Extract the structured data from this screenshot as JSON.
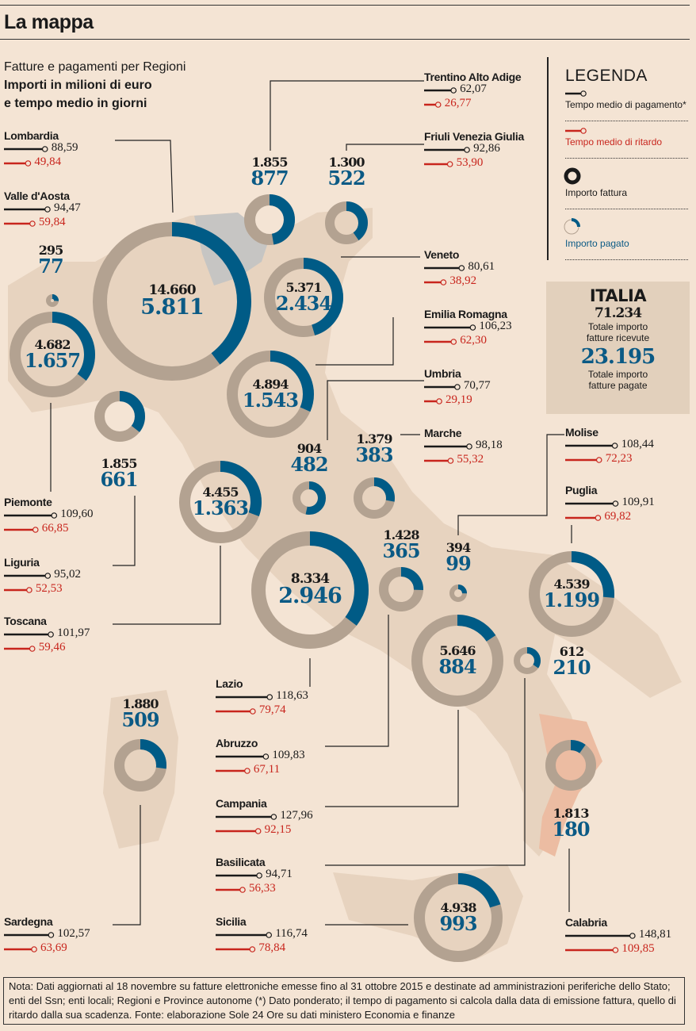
{
  "header": {
    "title": "La mappa",
    "subtitle": "Fatture e pagamenti per Regioni",
    "subtitle_bold_1": "Importi in milioni di euro",
    "subtitle_bold_2": "e tempo medio in giorni"
  },
  "legend": {
    "title": "LEGENDA",
    "payment_time": "Tempo medio di pagamento*",
    "delay_time": "Tempo medio di ritardo",
    "invoice_amount": "Importo fattura",
    "paid_amount": "Importo pagato"
  },
  "italia": {
    "title": "ITALIA",
    "total_invoices": "71.234",
    "total_invoices_label_1": "Totale importo",
    "total_invoices_label_2": "fatture ricevute",
    "total_paid": "23.195",
    "total_paid_label_1": "Totale importo",
    "total_paid_label_2": "fatture pagate"
  },
  "note": "Nota: Dati aggiornati al 18 novembre su fatture elettroniche emesse fino al 31 ottobre 2015 e destinate ad amministrazioni periferiche dello Stato; enti del Ssn; enti locali; Regioni e Province autonome (*) Dato ponderato; il tempo di pagamento si calcola dalla data di emissione fattura, quello di ritardo dalla sua scadenza. Fonte: elaborazione Sole 24 Ore su dati ministero Economia e finanze",
  "colors": {
    "invoice": "#b3a291",
    "paid": "#005b86",
    "payment_line": "#1a1a1a",
    "delay_line": "#c8251d",
    "map": "#e7d3bf",
    "map_north": "#c4c4c4",
    "map_calabria": "#edbda3"
  },
  "chart_data": {
    "type": "donut-map",
    "title": "Fatture e pagamenti per Regioni",
    "units": {
      "amount": "milioni di euro",
      "time": "giorni"
    },
    "regions": [
      {
        "name": "Lombardia",
        "invoice": "14.660",
        "paid": "5.811",
        "invoice_value": 14660,
        "paid_value": 5811,
        "payment_days": "88,59",
        "delay_days": "49,84"
      },
      {
        "name": "Valle d'Aosta",
        "invoice": "295",
        "paid": "77",
        "invoice_value": 295,
        "paid_value": 77,
        "payment_days": "94,47",
        "delay_days": "59,84"
      },
      {
        "name": "Piemonte",
        "invoice": "4.682",
        "paid": "1.657",
        "invoice_value": 4682,
        "paid_value": 1657,
        "payment_days": "109,60",
        "delay_days": "66,85"
      },
      {
        "name": "Liguria",
        "invoice": "1.855",
        "paid": "661",
        "invoice_value": 1855,
        "paid_value": 661,
        "payment_days": "95,02",
        "delay_days": "52,53"
      },
      {
        "name": "Toscana",
        "invoice": "4.455",
        "paid": "1.363",
        "invoice_value": 4455,
        "paid_value": 1363,
        "payment_days": "101,97",
        "delay_days": "59,46"
      },
      {
        "name": "Sardegna",
        "invoice": "1.880",
        "paid": "509",
        "invoice_value": 1880,
        "paid_value": 509,
        "payment_days": "102,57",
        "delay_days": "63,69"
      },
      {
        "name": "Lazio",
        "invoice": "8.334",
        "paid": "2.946",
        "invoice_value": 8334,
        "paid_value": 2946,
        "payment_days": "118,63",
        "delay_days": "79,74"
      },
      {
        "name": "Abruzzo",
        "invoice": "1.428",
        "paid": "365",
        "invoice_value": 1428,
        "paid_value": 365,
        "payment_days": "109,83",
        "delay_days": "67,11"
      },
      {
        "name": "Campania",
        "invoice": "5.646",
        "paid": "884",
        "invoice_value": 5646,
        "paid_value": 884,
        "payment_days": "127,96",
        "delay_days": "92,15"
      },
      {
        "name": "Basilicata",
        "invoice": "612",
        "paid": "210",
        "invoice_value": 612,
        "paid_value": 210,
        "payment_days": "94,71",
        "delay_days": "56,33"
      },
      {
        "name": "Sicilia",
        "invoice": "4.938",
        "paid": "993",
        "invoice_value": 4938,
        "paid_value": 993,
        "payment_days": "116,74",
        "delay_days": "78,84"
      },
      {
        "name": "Trentino Alto Adige",
        "invoice": "1.855",
        "paid": "877",
        "invoice_value": 1855,
        "paid_value": 877,
        "payment_days": "62,07",
        "delay_days": "26,77"
      },
      {
        "name": "Friuli Venezia Giulia",
        "invoice": "1.300",
        "paid": "522",
        "invoice_value": 1300,
        "paid_value": 522,
        "payment_days": "92,86",
        "delay_days": "53,90"
      },
      {
        "name": "Veneto",
        "invoice": "5.371",
        "paid": "2.434",
        "invoice_value": 5371,
        "paid_value": 2434,
        "payment_days": "80,61",
        "delay_days": "38,92"
      },
      {
        "name": "Emilia Romagna",
        "invoice": "4.894",
        "paid": "1.543",
        "invoice_value": 4894,
        "paid_value": 1543,
        "payment_days": "106,23",
        "delay_days": "62,30"
      },
      {
        "name": "Umbria",
        "invoice": "904",
        "paid": "482",
        "invoice_value": 904,
        "paid_value": 482,
        "payment_days": "70,77",
        "delay_days": "29,19"
      },
      {
        "name": "Marche",
        "invoice": "1.379",
        "paid": "383",
        "invoice_value": 1379,
        "paid_value": 383,
        "payment_days": "98,18",
        "delay_days": "55,32"
      },
      {
        "name": "Molise",
        "invoice": "394",
        "paid": "99",
        "invoice_value": 394,
        "paid_value": 99,
        "payment_days": "108,44",
        "delay_days": "72,23"
      },
      {
        "name": "Puglia",
        "invoice": "4.539",
        "paid": "1.199",
        "invoice_value": 4539,
        "paid_value": 1199,
        "payment_days": "109,91",
        "delay_days": "69,82"
      },
      {
        "name": "Calabria",
        "invoice": "1.813",
        "paid": "180",
        "invoice_value": 1813,
        "paid_value": 180,
        "payment_days": "148,81",
        "delay_days": "109,85"
      }
    ]
  }
}
